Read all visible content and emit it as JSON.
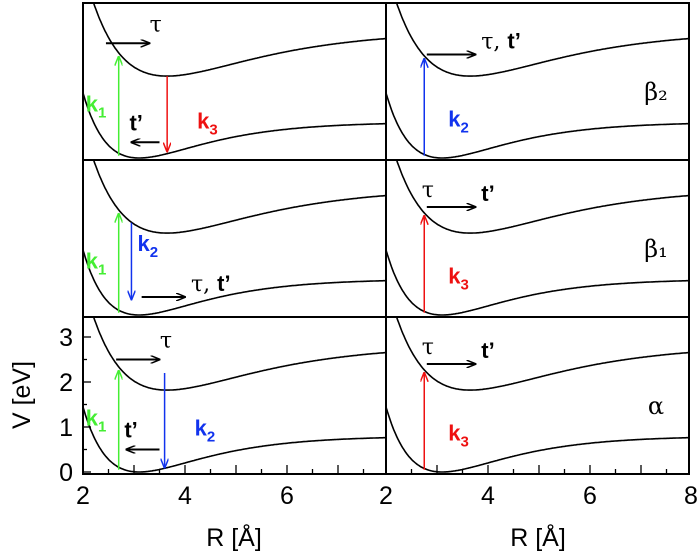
{
  "chart_data": {
    "type": "line",
    "xlabel": "R [Å]",
    "ylabel": "V [eV]",
    "xlim": [
      2,
      8
    ],
    "ylim": [
      0,
      3.5
    ],
    "x_ticks": [
      "2",
      "4",
      "6",
      "2",
      "4",
      "6",
      "8"
    ],
    "y_ticks": [
      "0",
      "1",
      "2",
      "3"
    ],
    "grid": false,
    "colors": {
      "curve": "#000000",
      "k1": "#44ee33",
      "k2": "#1133ee",
      "k3": "#ee1111"
    },
    "curves": {
      "ground": {
        "R": [
          2,
          2.5,
          3.1,
          3.6,
          4,
          5,
          6,
          7,
          8
        ],
        "V": [
          1.45,
          0.33,
          0,
          0.1,
          0.24,
          0.52,
          0.68,
          0.75,
          0.78
        ]
      },
      "excited": {
        "R": [
          2.25,
          2.7,
          3.0,
          3.65,
          4,
          5,
          6,
          7,
          8
        ],
        "V": [
          3.5,
          2.3,
          2.0,
          1.82,
          1.86,
          2.15,
          2.4,
          2.58,
          2.7
        ]
      }
    },
    "panels": [
      {
        "id": "beta2-left",
        "label": "",
        "arrows": [
          {
            "type": "k1",
            "label": "k",
            "sub": "1",
            "R": [
              2.7,
              2.7
            ],
            "V": [
              0.05,
              2.25
            ]
          },
          {
            "type": "k3",
            "label": "k",
            "sub": "3",
            "R": [
              3.65,
              3.65
            ],
            "V": [
              1.82,
              0.15
            ]
          },
          {
            "type": "tau",
            "label": "τ",
            "R": [
              2.45,
              3.3
            ],
            "V": [
              2.55,
              2.55
            ]
          },
          {
            "type": "tprime",
            "label": "t’",
            "R": [
              3.5,
              2.95
            ],
            "V": [
              0.35,
              0.35
            ]
          }
        ]
      },
      {
        "id": "beta2-right",
        "label": "β₂",
        "arrows": [
          {
            "type": "k2",
            "label": "k",
            "sub": "2",
            "R": [
              2.75,
              2.75
            ],
            "V": [
              0.05,
              2.2
            ]
          },
          {
            "type": "tau",
            "label": "τ, ",
            "label2": "t’",
            "R": [
              2.8,
              3.75
            ],
            "V": [
              2.3,
              2.3
            ]
          }
        ]
      },
      {
        "id": "beta1-left",
        "label": "",
        "arrows": [
          {
            "type": "k1",
            "label": "k",
            "sub": "1",
            "R": [
              2.7,
              2.7
            ],
            "V": [
              0.05,
              2.25
            ]
          },
          {
            "type": "k2",
            "label": "k",
            "sub": "2",
            "R": [
              2.95,
              2.95
            ],
            "V": [
              2.05,
              0.35
            ]
          },
          {
            "type": "tau",
            "label": "τ, ",
            "label2": "t’",
            "R": [
              3.15,
              4.0
            ],
            "V": [
              0.4,
              0.4
            ]
          }
        ]
      },
      {
        "id": "beta1-right",
        "label": "β₁",
        "arrows": [
          {
            "type": "k3",
            "label": "k",
            "sub": "3",
            "R": [
              2.75,
              2.75
            ],
            "V": [
              0.05,
              2.2
            ]
          },
          {
            "type": "tau",
            "label": "τ",
            "label2": "t’",
            "R": [
              2.8,
              3.75
            ],
            "V": [
              2.4,
              2.4
            ]
          }
        ]
      },
      {
        "id": "alpha-left",
        "label": "",
        "arrows": [
          {
            "type": "k1",
            "label": "k",
            "sub": "1",
            "R": [
              2.7,
              2.7
            ],
            "V": [
              0.05,
              2.25
            ]
          },
          {
            "type": "k2",
            "label": "k",
            "sub": "2",
            "R": [
              3.6,
              3.6
            ],
            "V": [
              2.2,
              0.1
            ]
          },
          {
            "type": "tau",
            "label": "τ",
            "R": [
              2.65,
              3.5
            ],
            "V": [
              2.5,
              2.5
            ]
          },
          {
            "type": "tprime",
            "label": "t’",
            "R": [
              3.5,
              2.85
            ],
            "V": [
              0.5,
              0.5
            ]
          }
        ]
      },
      {
        "id": "alpha-right",
        "label": "α",
        "arrows": [
          {
            "type": "k3",
            "label": "k",
            "sub": "3",
            "R": [
              2.75,
              2.75
            ],
            "V": [
              0.05,
              2.2
            ]
          },
          {
            "type": "tau",
            "label": "τ",
            "label2": "t’",
            "R": [
              2.8,
              3.75
            ],
            "V": [
              2.4,
              2.4
            ]
          }
        ]
      }
    ]
  }
}
